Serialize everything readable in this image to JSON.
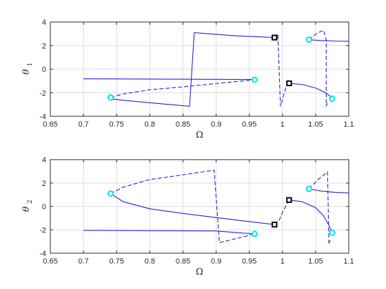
{
  "chart_data": [
    {
      "type": "line",
      "xlabel": "Ω",
      "ylabel": "θ",
      "ylabel_sub": "1",
      "xlim": [
        0.65,
        1.1
      ],
      "ylim": [
        -4,
        4
      ],
      "xticks": [
        "0.65",
        "0.7",
        "0.75",
        "0.8",
        "0.85",
        "0.9",
        "0.95",
        "1",
        "1.05",
        "1.1"
      ],
      "yticks": [
        "4",
        "2",
        "0",
        "-2",
        "-4"
      ],
      "grid": true,
      "series": [
        {
          "style": "solid",
          "values": [
            [
              0.7,
              -0.82
            ],
            [
              0.96,
              -0.88
            ]
          ]
        },
        {
          "style": "solid",
          "values": [
            [
              0.741,
              -2.4
            ],
            [
              0.745,
              -2.55
            ],
            [
              0.78,
              -2.75
            ],
            [
              0.82,
              -2.95
            ],
            [
              0.86,
              -3.15
            ]
          ]
        },
        {
          "style": "solid",
          "values": [
            [
              0.86,
              -3.15
            ],
            [
              0.867,
              3.1
            ],
            [
              0.93,
              2.83
            ],
            [
              0.988,
              2.68
            ]
          ]
        },
        {
          "style": "dashed",
          "values": [
            [
              0.741,
              -2.4
            ],
            [
              0.76,
              -2.1
            ],
            [
              0.8,
              -1.75
            ],
            [
              0.85,
              -1.5
            ],
            [
              0.9,
              -1.22
            ],
            [
              0.958,
              -0.9
            ]
          ]
        },
        {
          "style": "dashed",
          "values": [
            [
              0.988,
              2.68
            ],
            [
              0.993,
              3.0
            ],
            [
              0.997,
              -3.15
            ],
            [
              1.005,
              -1.6
            ],
            [
              1.01,
              -1.2
            ]
          ]
        },
        {
          "style": "solid",
          "values": [
            [
              1.01,
              -1.2
            ],
            [
              1.03,
              -1.3
            ],
            [
              1.05,
              -1.6
            ],
            [
              1.065,
              -2.0
            ],
            [
              1.072,
              -2.3
            ],
            [
              1.075,
              -2.5
            ]
          ]
        },
        {
          "style": "dashed",
          "values": [
            [
              1.04,
              2.5
            ],
            [
              1.052,
              3.05
            ],
            [
              1.062,
              3.3
            ],
            [
              1.066,
              2.5
            ],
            [
              1.066,
              -3.1
            ],
            [
              1.068,
              -2.9
            ]
          ]
        },
        {
          "style": "solid",
          "values": [
            [
              1.04,
              2.5
            ],
            [
              1.06,
              2.42
            ],
            [
              1.08,
              2.38
            ],
            [
              1.1,
              2.36
            ]
          ]
        }
      ],
      "markers": [
        {
          "kind": "cyan",
          "x": 0.741,
          "y": -2.4
        },
        {
          "kind": "cyan",
          "x": 0.958,
          "y": -0.9
        },
        {
          "kind": "cyan",
          "x": 1.04,
          "y": 2.5
        },
        {
          "kind": "cyan",
          "x": 1.075,
          "y": -2.5
        },
        {
          "kind": "black",
          "x": 0.988,
          "y": 2.68
        },
        {
          "kind": "black",
          "x": 1.01,
          "y": -1.2
        }
      ]
    },
    {
      "type": "line",
      "xlabel": "Ω",
      "ylabel": "θ",
      "ylabel_sub": "2",
      "xlim": [
        0.65,
        1.1
      ],
      "ylim": [
        -4,
        4
      ],
      "xticks": [
        "0.65",
        "0.7",
        "0.75",
        "0.8",
        "0.85",
        "0.9",
        "0.95",
        "1",
        "1.05",
        "1.1"
      ],
      "yticks": [
        "4",
        "2",
        "0",
        "-2",
        "-4"
      ],
      "grid": true,
      "series": [
        {
          "style": "solid",
          "values": [
            [
              0.7,
              -2.05
            ],
            [
              0.9,
              -2.1
            ],
            [
              0.958,
              -2.35
            ]
          ]
        },
        {
          "style": "solid",
          "values": [
            [
              0.741,
              1.1
            ],
            [
              0.76,
              0.4
            ],
            [
              0.8,
              -0.2
            ],
            [
              0.85,
              -0.6
            ],
            [
              0.9,
              -0.95
            ],
            [
              0.95,
              -1.3
            ],
            [
              0.988,
              -1.55
            ]
          ]
        },
        {
          "style": "dashed",
          "values": [
            [
              0.741,
              1.1
            ],
            [
              0.76,
              1.65
            ],
            [
              0.8,
              2.3
            ],
            [
              0.85,
              2.7
            ],
            [
              0.897,
              3.1
            ],
            [
              0.905,
              -3.1
            ],
            [
              0.93,
              -2.75
            ],
            [
              0.958,
              -2.35
            ]
          ]
        },
        {
          "style": "dashed",
          "values": [
            [
              0.988,
              -1.55
            ],
            [
              0.995,
              -1.2
            ],
            [
              1.0,
              -0.5
            ],
            [
              1.01,
              0.55
            ]
          ]
        },
        {
          "style": "solid",
          "values": [
            [
              1.01,
              0.55
            ],
            [
              1.03,
              0.4
            ],
            [
              1.05,
              -0.1
            ],
            [
              1.062,
              -0.8
            ],
            [
              1.07,
              -1.6
            ],
            [
              1.075,
              -2.25
            ]
          ]
        },
        {
          "style": "dashed",
          "values": [
            [
              1.04,
              1.5
            ],
            [
              1.055,
              2.35
            ],
            [
              1.068,
              2.95
            ],
            [
              1.07,
              -3.2
            ],
            [
              1.072,
              -2.9
            ]
          ]
        },
        {
          "style": "solid",
          "values": [
            [
              1.04,
              1.5
            ],
            [
              1.06,
              1.3
            ],
            [
              1.08,
              1.2
            ],
            [
              1.1,
              1.15
            ]
          ]
        }
      ],
      "markers": [
        {
          "kind": "cyan",
          "x": 0.741,
          "y": 1.1
        },
        {
          "kind": "cyan",
          "x": 0.958,
          "y": -2.35
        },
        {
          "kind": "cyan",
          "x": 1.04,
          "y": 1.5
        },
        {
          "kind": "cyan",
          "x": 1.075,
          "y": -2.25
        },
        {
          "kind": "black",
          "x": 0.988,
          "y": -1.55
        },
        {
          "kind": "black",
          "x": 1.01,
          "y": 0.55
        }
      ]
    }
  ],
  "colors": {
    "line": "#2020e0",
    "cyan_marker": "#00e5e5",
    "black_marker": "#000000",
    "grid": "#dcdcdc",
    "axis": "#262626"
  }
}
